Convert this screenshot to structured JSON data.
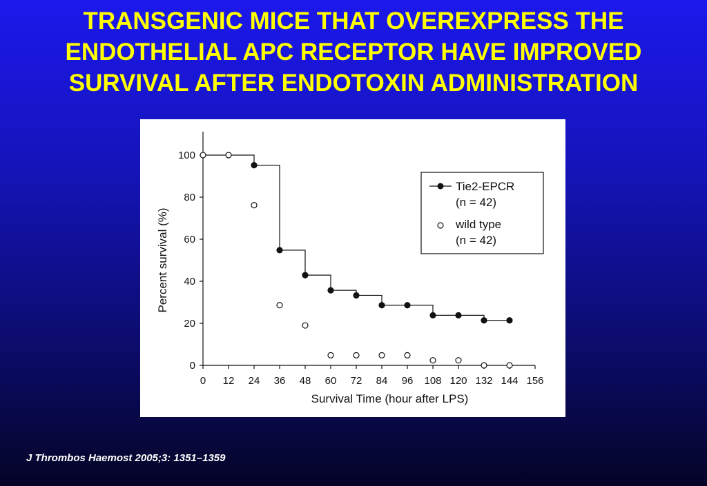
{
  "slide": {
    "title_lines": [
      "TRANSGENIC MICE THAT OVEREXPRESS THE",
      "ENDOTHELIAL APC RECEPTOR HAVE IMPROVED",
      "SURVIVAL AFTER ENDOTOXIN ADMINISTRATION"
    ],
    "citation": "J Thrombos Haemost 2005;3: 1351–1359"
  },
  "colors": {
    "title": "#ffff00",
    "background_top": "#1c18ec",
    "background_bottom": "#040426",
    "citation": "#ffffff",
    "plot_ink": "#111111"
  },
  "chart_data": {
    "type": "line",
    "subtype": "kaplan-meier step survival",
    "title": "",
    "xlabel": "Survival Time (hour after LPS)",
    "ylabel": "Percent survival (%)",
    "xlim": [
      0,
      156
    ],
    "ylim": [
      0,
      100
    ],
    "xticks": [
      0,
      12,
      24,
      36,
      48,
      60,
      72,
      84,
      96,
      108,
      120,
      132,
      144,
      156
    ],
    "yticks": [
      0,
      20,
      40,
      60,
      80,
      100
    ],
    "grid": false,
    "legend_position": "top-right",
    "series": [
      {
        "name": "Tie2-EPCR",
        "legend_label": "Tie2-EPCR",
        "legend_n": "(n = 42)",
        "marker": "filled-circle",
        "step_line": true,
        "x": [
          0,
          24,
          36,
          48,
          60,
          72,
          84,
          96,
          108,
          120,
          132,
          144
        ],
        "y": [
          100,
          95.2,
          54.8,
          42.9,
          35.7,
          33.3,
          28.6,
          28.6,
          23.8,
          23.8,
          21.4,
          21.4
        ],
        "markers_x": [
          24,
          36,
          48,
          60,
          72,
          84,
          96,
          108,
          120,
          132,
          144
        ]
      },
      {
        "name": "wild type",
        "legend_label": "wild type",
        "legend_n": "(n = 42)",
        "marker": "open-circle",
        "step_line": false,
        "x": [
          0,
          12,
          24,
          36,
          48,
          60,
          72,
          84,
          96,
          108,
          120,
          132,
          144
        ],
        "y": [
          100,
          100,
          76.2,
          28.6,
          19.0,
          4.8,
          4.8,
          4.8,
          4.8,
          2.4,
          2.4,
          0,
          0
        ],
        "markers_x": [
          0,
          12,
          24,
          36,
          48,
          60,
          72,
          84,
          96,
          108,
          120,
          132,
          144
        ]
      }
    ]
  }
}
